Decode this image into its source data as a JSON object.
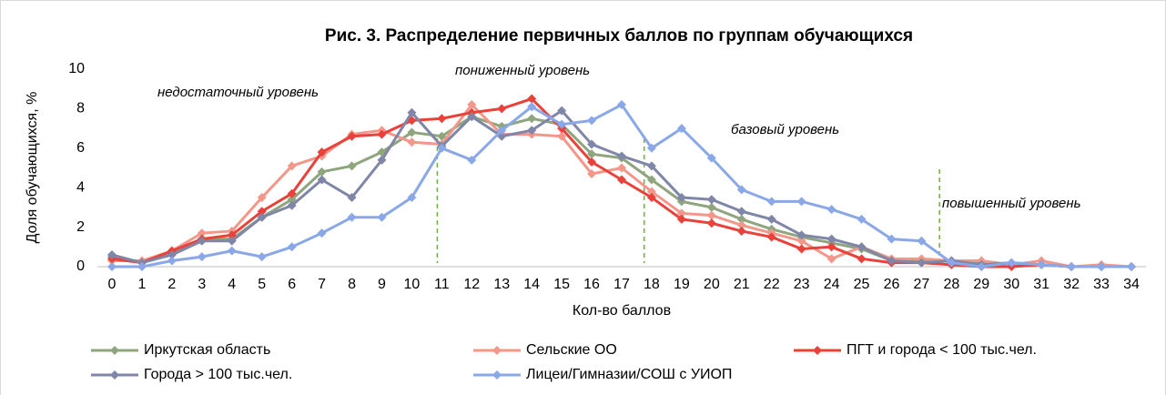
{
  "chart_data": {
    "type": "line",
    "title": "Рис. 3. Распределение первичных баллов по группам обучающихся",
    "x_label": "Кол-во баллов",
    "y_label": "Доля обучающихся, %",
    "annotations": [
      "недостаточный уровень",
      "пониженный уровень",
      "базовый уровень",
      "повышенный уровень"
    ],
    "vlines": [
      10.85,
      17.75,
      27.6
    ],
    "vline_color": "#70ad47",
    "x": [
      0,
      1,
      2,
      3,
      4,
      5,
      6,
      7,
      8,
      9,
      10,
      11,
      12,
      13,
      14,
      15,
      16,
      17,
      18,
      19,
      20,
      21,
      22,
      23,
      24,
      25,
      26,
      27,
      28,
      29,
      30,
      31,
      32,
      33,
      34
    ],
    "xlim": [
      0,
      34
    ],
    "xticks": [
      0,
      1,
      2,
      3,
      4,
      5,
      6,
      7,
      8,
      9,
      10,
      11,
      12,
      13,
      14,
      15,
      16,
      17,
      18,
      19,
      20,
      21,
      22,
      23,
      24,
      25,
      26,
      27,
      28,
      29,
      30,
      31,
      32,
      33,
      34
    ],
    "ylim": [
      0,
      10
    ],
    "yticks": [
      0,
      2,
      4,
      6,
      8,
      10
    ],
    "series": [
      {
        "name": "Иркутская область",
        "color": "#8fa57e",
        "values": [
          0.5,
          0.2,
          0.7,
          1.4,
          1.4,
          2.5,
          3.4,
          4.8,
          5.1,
          5.8,
          6.8,
          6.6,
          7.6,
          7.1,
          7.5,
          7.2,
          5.7,
          5.5,
          4.4,
          3.3,
          3.0,
          2.4,
          1.9,
          1.5,
          1.2,
          0.9,
          0.3,
          0.3,
          0.3,
          0.2,
          0.1,
          0.1,
          0.0,
          0.0,
          0.0
        ]
      },
      {
        "name": "Сельские ОО",
        "color": "#f4978b",
        "values": [
          0.3,
          0.3,
          0.8,
          1.7,
          1.8,
          3.5,
          5.1,
          5.6,
          6.7,
          6.9,
          6.3,
          6.2,
          8.2,
          6.7,
          6.7,
          6.6,
          4.7,
          5.0,
          3.8,
          2.7,
          2.6,
          2.1,
          1.7,
          1.3,
          0.4,
          1.0,
          0.4,
          0.4,
          0.3,
          0.3,
          0.1,
          0.3,
          0.0,
          0.1,
          0.0
        ]
      },
      {
        "name": "ПГТ и города < 100 тыс.чел.",
        "color": "#e8423a",
        "values": [
          0.4,
          0.2,
          0.8,
          1.4,
          1.6,
          2.8,
          3.7,
          5.8,
          6.6,
          6.7,
          7.4,
          7.5,
          7.8,
          8.0,
          8.5,
          7.0,
          5.3,
          4.4,
          3.5,
          2.4,
          2.2,
          1.8,
          1.5,
          0.9,
          1.0,
          0.4,
          0.2,
          0.2,
          0.1,
          0.0,
          0.0,
          0.1,
          0.0,
          0.0,
          0.0
        ]
      },
      {
        "name": "Города > 100 тыс.чел.",
        "color": "#7f86a8",
        "values": [
          0.6,
          0.2,
          0.6,
          1.3,
          1.3,
          2.5,
          3.1,
          4.4,
          3.5,
          5.4,
          7.8,
          6.1,
          7.6,
          6.6,
          6.9,
          7.9,
          6.2,
          5.6,
          5.1,
          3.5,
          3.4,
          2.8,
          2.4,
          1.6,
          1.4,
          1.0,
          0.3,
          0.2,
          0.3,
          0.1,
          0.2,
          0.1,
          0.0,
          0.0,
          0.0
        ]
      },
      {
        "name": "Лицеи/Гимназии/СОШ с УИОП",
        "color": "#8aa8e8",
        "values": [
          0.0,
          0.0,
          0.3,
          0.5,
          0.8,
          0.5,
          1.0,
          1.7,
          2.5,
          2.5,
          3.5,
          6.0,
          5.4,
          6.9,
          8.1,
          7.2,
          7.4,
          8.2,
          6.0,
          7.0,
          5.5,
          3.9,
          3.3,
          3.3,
          2.9,
          2.4,
          1.4,
          1.3,
          0.2,
          0.0,
          0.2,
          0.1,
          0.0,
          0.0,
          0.0
        ]
      }
    ]
  }
}
